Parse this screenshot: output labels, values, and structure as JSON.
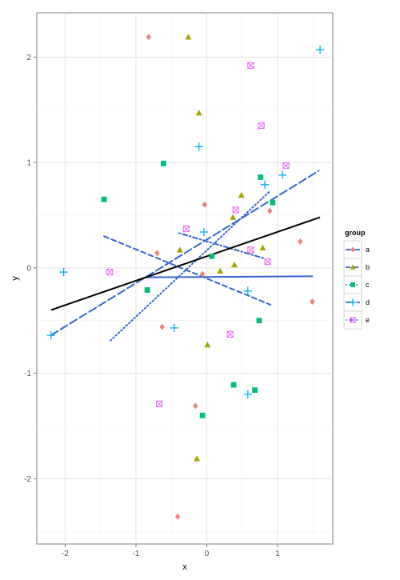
{
  "chart_data": {
    "type": "scatter",
    "xlabel": "x",
    "ylabel": "y",
    "xlim": [
      -2.4,
      1.78
    ],
    "ylim": [
      -2.62,
      2.42
    ],
    "x_ticks": [
      -2,
      -1,
      0,
      1
    ],
    "y_ticks": [
      -2,
      -1,
      0,
      1,
      2
    ],
    "x_tick_labels": [
      "-2",
      "-1",
      "0",
      "1"
    ],
    "y_tick_labels": [
      "-2",
      "-1",
      "0",
      "1",
      "2"
    ],
    "grid": true,
    "legend": {
      "title": "group",
      "placement": "right",
      "entries": [
        "a",
        "b",
        "c",
        "d",
        "e"
      ]
    },
    "series": [
      {
        "name": "a",
        "marker": "diamond",
        "color": "#F08080",
        "line_style": "solid",
        "fit_line": [
          [
            -0.85,
            -0.09
          ],
          [
            1.49,
            -0.08
          ]
        ],
        "points": [
          [
            -0.82,
            2.19
          ],
          [
            0.89,
            0.54
          ],
          [
            1.32,
            0.25
          ],
          [
            -0.03,
            0.6
          ],
          [
            -0.7,
            0.14
          ],
          [
            -0.06,
            -0.06
          ],
          [
            -0.63,
            -0.56
          ],
          [
            1.49,
            -0.32
          ],
          [
            -0.16,
            -1.31
          ],
          [
            -0.41,
            -2.36
          ]
        ]
      },
      {
        "name": "b",
        "marker": "triangle",
        "color": "#A3A500",
        "line_style": "dashed",
        "fit_line": [
          [
            -1.45,
            0.3
          ],
          [
            0.9,
            -0.35
          ]
        ],
        "points": [
          [
            -0.26,
            2.19
          ],
          [
            -0.11,
            1.47
          ],
          [
            0.49,
            0.69
          ],
          [
            0.37,
            0.48
          ],
          [
            -0.38,
            0.17
          ],
          [
            0.19,
            -0.03
          ],
          [
            0.39,
            0.03
          ],
          [
            0.79,
            0.19
          ],
          [
            0.01,
            -0.73
          ],
          [
            -0.14,
            -1.81
          ]
        ]
      },
      {
        "name": "c",
        "marker": "square",
        "color": "#00BF7D",
        "line_style": "dotted",
        "fit_line": [
          [
            -1.36,
            -0.69
          ],
          [
            0.88,
            0.72
          ]
        ],
        "points": [
          [
            -0.61,
            0.99
          ],
          [
            -1.45,
            0.65
          ],
          [
            0.76,
            0.86
          ],
          [
            0.93,
            0.62
          ],
          [
            0.07,
            0.11
          ],
          [
            -0.84,
            -0.21
          ],
          [
            0.74,
            -0.5
          ],
          [
            0.38,
            -1.11
          ],
          [
            0.68,
            -1.16
          ],
          [
            -0.06,
            -1.4
          ]
        ]
      },
      {
        "name": "d",
        "marker": "plus",
        "color": "#00B0F6",
        "line_style": "longdash",
        "fit_line": [
          [
            -2.2,
            -0.64
          ],
          [
            1.58,
            0.92
          ]
        ],
        "points": [
          [
            1.6,
            2.07
          ],
          [
            -0.11,
            1.15
          ],
          [
            1.07,
            0.88
          ],
          [
            0.82,
            0.79
          ],
          [
            -0.04,
            0.34
          ],
          [
            -2.02,
            -0.04
          ],
          [
            -2.2,
            -0.64
          ],
          [
            -0.46,
            -0.57
          ],
          [
            0.58,
            -0.22
          ],
          [
            0.58,
            -1.2
          ]
        ]
      },
      {
        "name": "e",
        "marker": "square-x",
        "color": "#E76BF3",
        "line_style": "dotdash",
        "fit_line": [
          [
            -0.39,
            0.33
          ],
          [
            0.81,
            0.09
          ]
        ],
        "points": [
          [
            0.62,
            1.92
          ],
          [
            0.77,
            1.35
          ],
          [
            1.12,
            0.97
          ],
          [
            0.41,
            0.55
          ],
          [
            -0.29,
            0.37
          ],
          [
            0.62,
            0.17
          ],
          [
            0.86,
            0.06
          ],
          [
            -1.37,
            -0.04
          ],
          [
            0.33,
            -0.63
          ],
          [
            -0.67,
            -1.29
          ]
        ]
      }
    ],
    "overall_fit": {
      "color": "#000000",
      "line": [
        [
          -2.2,
          -0.4
        ],
        [
          1.6,
          0.48
        ]
      ]
    }
  }
}
